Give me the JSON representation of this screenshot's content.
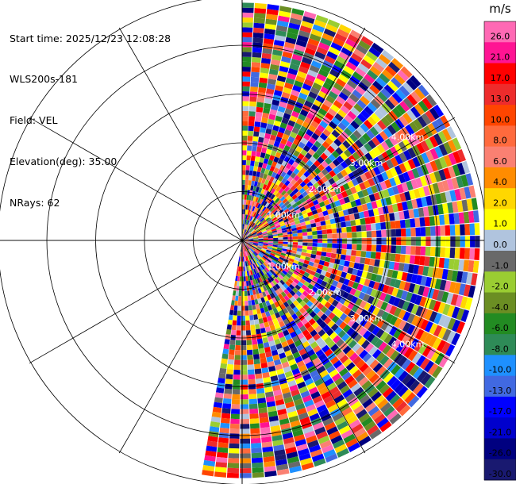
{
  "info": {
    "start_time": "Start time: 2025/12/23 12:08:28",
    "instrument": "WLS200s-181",
    "field": "Field: VEL",
    "elevation": "Elevation(deg): 35.00",
    "nrays": "NRays: 62"
  },
  "colorbar": {
    "unit": "m/s",
    "ticks": [
      "26.0",
      "21.0",
      "17.0",
      "13.0",
      "10.0",
      "8.0",
      "6.0",
      "4.0",
      "2.0",
      "1.0",
      "0.0",
      "-1.0",
      "-2.0",
      "-4.0",
      "-6.0",
      "-8.0",
      "-10.0",
      "-13.0",
      "-17.0",
      "-21.0",
      "-26.0",
      "-30.0"
    ],
    "colors": [
      "#ff69b4",
      "#ff1493",
      "#ff0000",
      "#ee2c2c",
      "#ff4500",
      "#ff6a3d",
      "#fa8072",
      "#ff8c00",
      "#ffd700",
      "#ffff00",
      "#b0c4de",
      "#696969",
      "#9acd32",
      "#6b8e23",
      "#228b22",
      "#2e8b57",
      "#1e90ff",
      "#4169e1",
      "#0000ff",
      "#0000cd",
      "#000080",
      "#191970"
    ]
  },
  "chart_data": {
    "type": "heatmap",
    "projection": "polar PPI (radial velocity)",
    "range_ring_labels": [
      "1.00km",
      "2.00km",
      "3.00km",
      "4.00km"
    ],
    "azimuth_coverage_deg": [
      0,
      190
    ],
    "n_rays": 62,
    "value_range": [
      -30,
      30
    ],
    "unit": "m/s",
    "pattern": "noisy, spatially random velocities spanning the full color scale"
  }
}
